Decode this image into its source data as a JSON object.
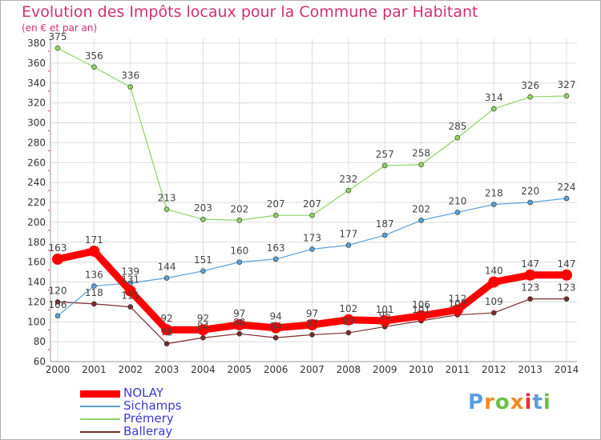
{
  "chart_data": {
    "type": "line",
    "title": "Evolution des Impôts locaux pour la Commune par Habitant",
    "subtitle": "(en € et par an)",
    "x": [
      "2000",
      "2001",
      "2002",
      "2003",
      "2004",
      "2005",
      "2006",
      "2007",
      "2008",
      "2009",
      "2010",
      "2011",
      "2012",
      "2013",
      "2014"
    ],
    "ylim": [
      60,
      380
    ],
    "yticks": [
      60,
      80,
      100,
      120,
      140,
      160,
      180,
      200,
      220,
      240,
      260,
      280,
      300,
      320,
      340,
      360,
      380
    ],
    "grid": true,
    "series": [
      {
        "name": "NOLAY",
        "color": "#ff0000",
        "values": [
          163,
          171,
          131,
          92,
          92,
          97,
          94,
          97,
          102,
          101,
          106,
          112,
          140,
          147,
          147
        ],
        "labels": [
          "163",
          "171",
          "131",
          "92",
          "92",
          "97",
          "94",
          "97",
          "102",
          "101",
          "106",
          "112",
          "140",
          "147",
          "147"
        ]
      },
      {
        "name": "Sichamps",
        "color": "#5a9fd4",
        "values": [
          106,
          136,
          139,
          144,
          151,
          160,
          163,
          173,
          177,
          187,
          202,
          210,
          218,
          220,
          224
        ],
        "labels": [
          "106",
          "136",
          "139",
          "144",
          "151",
          "160",
          "163",
          "173",
          "177",
          "187",
          "202",
          "210",
          "218",
          "220",
          "224"
        ]
      },
      {
        "name": "Prémery",
        "color": "#8fd166",
        "values": [
          375,
          356,
          336,
          213,
          203,
          202,
          207,
          207,
          232,
          257,
          258,
          285,
          314,
          326,
          327
        ],
        "labels": [
          "375",
          "356",
          "336",
          "213",
          "203",
          "202",
          "207",
          "207",
          "232",
          "257",
          "258",
          "285",
          "314",
          "326",
          "327"
        ]
      },
      {
        "name": "Balleray",
        "color": "#7a2a2a",
        "values": [
          120,
          118,
          115,
          78,
          84,
          88,
          84,
          87,
          89,
          95,
          101,
          107,
          109,
          123,
          123
        ],
        "labels": [
          "120",
          "118",
          "115",
          "78",
          "84",
          "88",
          "84",
          "87",
          "89",
          "95",
          "101",
          "107",
          "109",
          "123",
          "123"
        ]
      }
    ]
  },
  "logo": {
    "letters": [
      "P",
      "r",
      "o",
      "x",
      "i",
      "t",
      "i"
    ],
    "colors": [
      "#5aa0e0",
      "#f08a24",
      "#6cc04a",
      "#f08a24",
      "#e03030",
      "#5aa0e0",
      "#6cc04a"
    ]
  }
}
